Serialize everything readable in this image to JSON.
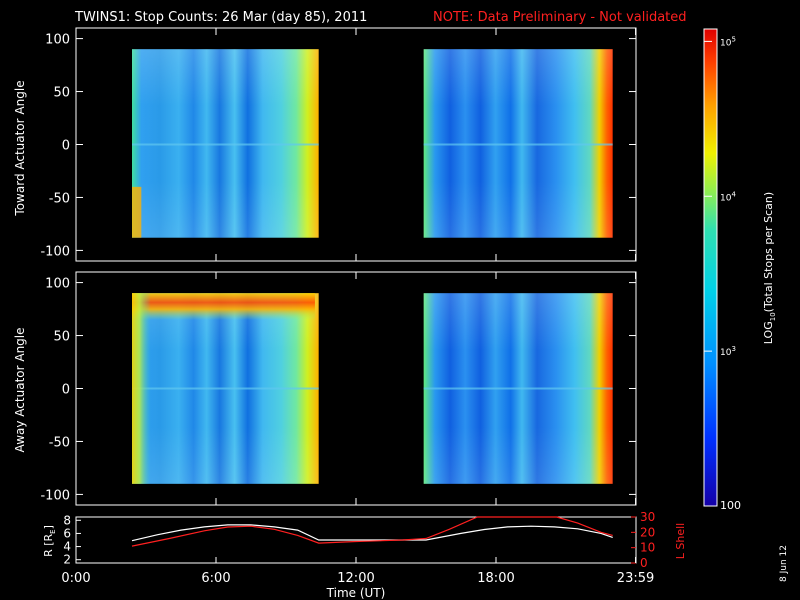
{
  "header": {
    "title": "TWINS1: Stop Counts: 26 Mar (day  85), 2011",
    "note": "NOTE: Data Preliminary - Not validated"
  },
  "side_date": "8 Jun 12",
  "colors": {
    "background": "#000000",
    "note": "#ff2020",
    "r_line": "#ffffff",
    "lshell_line": "#ff2020"
  },
  "chart_data": [
    {
      "type": "heatmap",
      "ylabel": "Toward Actuator Angle",
      "ylim": [
        -110,
        110
      ],
      "yticks": [
        -100,
        -50,
        0,
        50,
        100
      ],
      "x_range_hours": [
        0,
        24
      ],
      "data_blocks": [
        {
          "start": "02:24",
          "end": "10:24",
          "angle_range": [
            -88,
            90
          ]
        },
        {
          "start": "14:54",
          "end": "23:00",
          "angle_range": [
            -88,
            90
          ]
        }
      ]
    },
    {
      "type": "heatmap",
      "ylabel": "Away Actuator Angle",
      "ylim": [
        -110,
        110
      ],
      "yticks": [
        -100,
        -50,
        0,
        50,
        100
      ],
      "x_range_hours": [
        0,
        24
      ],
      "data_blocks": [
        {
          "start": "02:24",
          "end": "10:24",
          "angle_range": [
            -90,
            90
          ]
        },
        {
          "start": "14:54",
          "end": "23:00",
          "angle_range": [
            -90,
            90
          ]
        }
      ]
    },
    {
      "type": "line",
      "xlabel": "Time (UT)",
      "xticks": [
        "0:00",
        "6:00",
        "12:00",
        "18:00",
        "23:59"
      ],
      "xtick_hours": [
        0,
        6,
        12,
        18,
        23.98
      ],
      "left_axis": {
        "label": "R [R",
        "label_sub": "E",
        "label_end": "]",
        "ticks": [
          2,
          4,
          6,
          8
        ],
        "ylim": [
          1.5,
          8.5
        ]
      },
      "right_axis": {
        "label": "L Shell",
        "ticks": [
          0,
          10,
          20,
          30
        ],
        "ylim": [
          0,
          30
        ]
      },
      "series": [
        {
          "axis": "left",
          "x": [
            2.4,
            3.5,
            4.5,
            5.5,
            6.5,
            7.5,
            8.5,
            9.5,
            10.4,
            11.5,
            13,
            15,
            16.5,
            17.5,
            18.5,
            19.5,
            20.5,
            21.5,
            22.5,
            23
          ],
          "y": [
            4.9,
            5.8,
            6.5,
            7.0,
            7.3,
            7.3,
            7.0,
            6.5,
            5.0,
            5.0,
            5.0,
            5.0,
            6.0,
            6.6,
            7.0,
            7.1,
            7.0,
            6.7,
            6.0,
            5.4
          ]
        },
        {
          "axis": "right",
          "x": [
            2.4,
            4,
            5.5,
            6.5,
            7.5,
            8.5,
            9.5,
            10.4,
            12,
            14,
            15,
            16,
            17.2,
            20.6,
            21.5,
            22.5,
            23
          ],
          "y": [
            11,
            16,
            21,
            23.5,
            24,
            22,
            18,
            13,
            14,
            15,
            16,
            22,
            30,
            30,
            26,
            20,
            18
          ]
        }
      ]
    }
  ],
  "colorbar": {
    "label_pre": "LOG",
    "label_sub": "10",
    "label_post": "(Total Stops per Scan)",
    "min_label": "100",
    "ticks": [
      {
        "base": "10",
        "exp": "3"
      },
      {
        "base": "10",
        "exp": "4"
      },
      {
        "base": "10",
        "exp": "5"
      }
    ]
  }
}
